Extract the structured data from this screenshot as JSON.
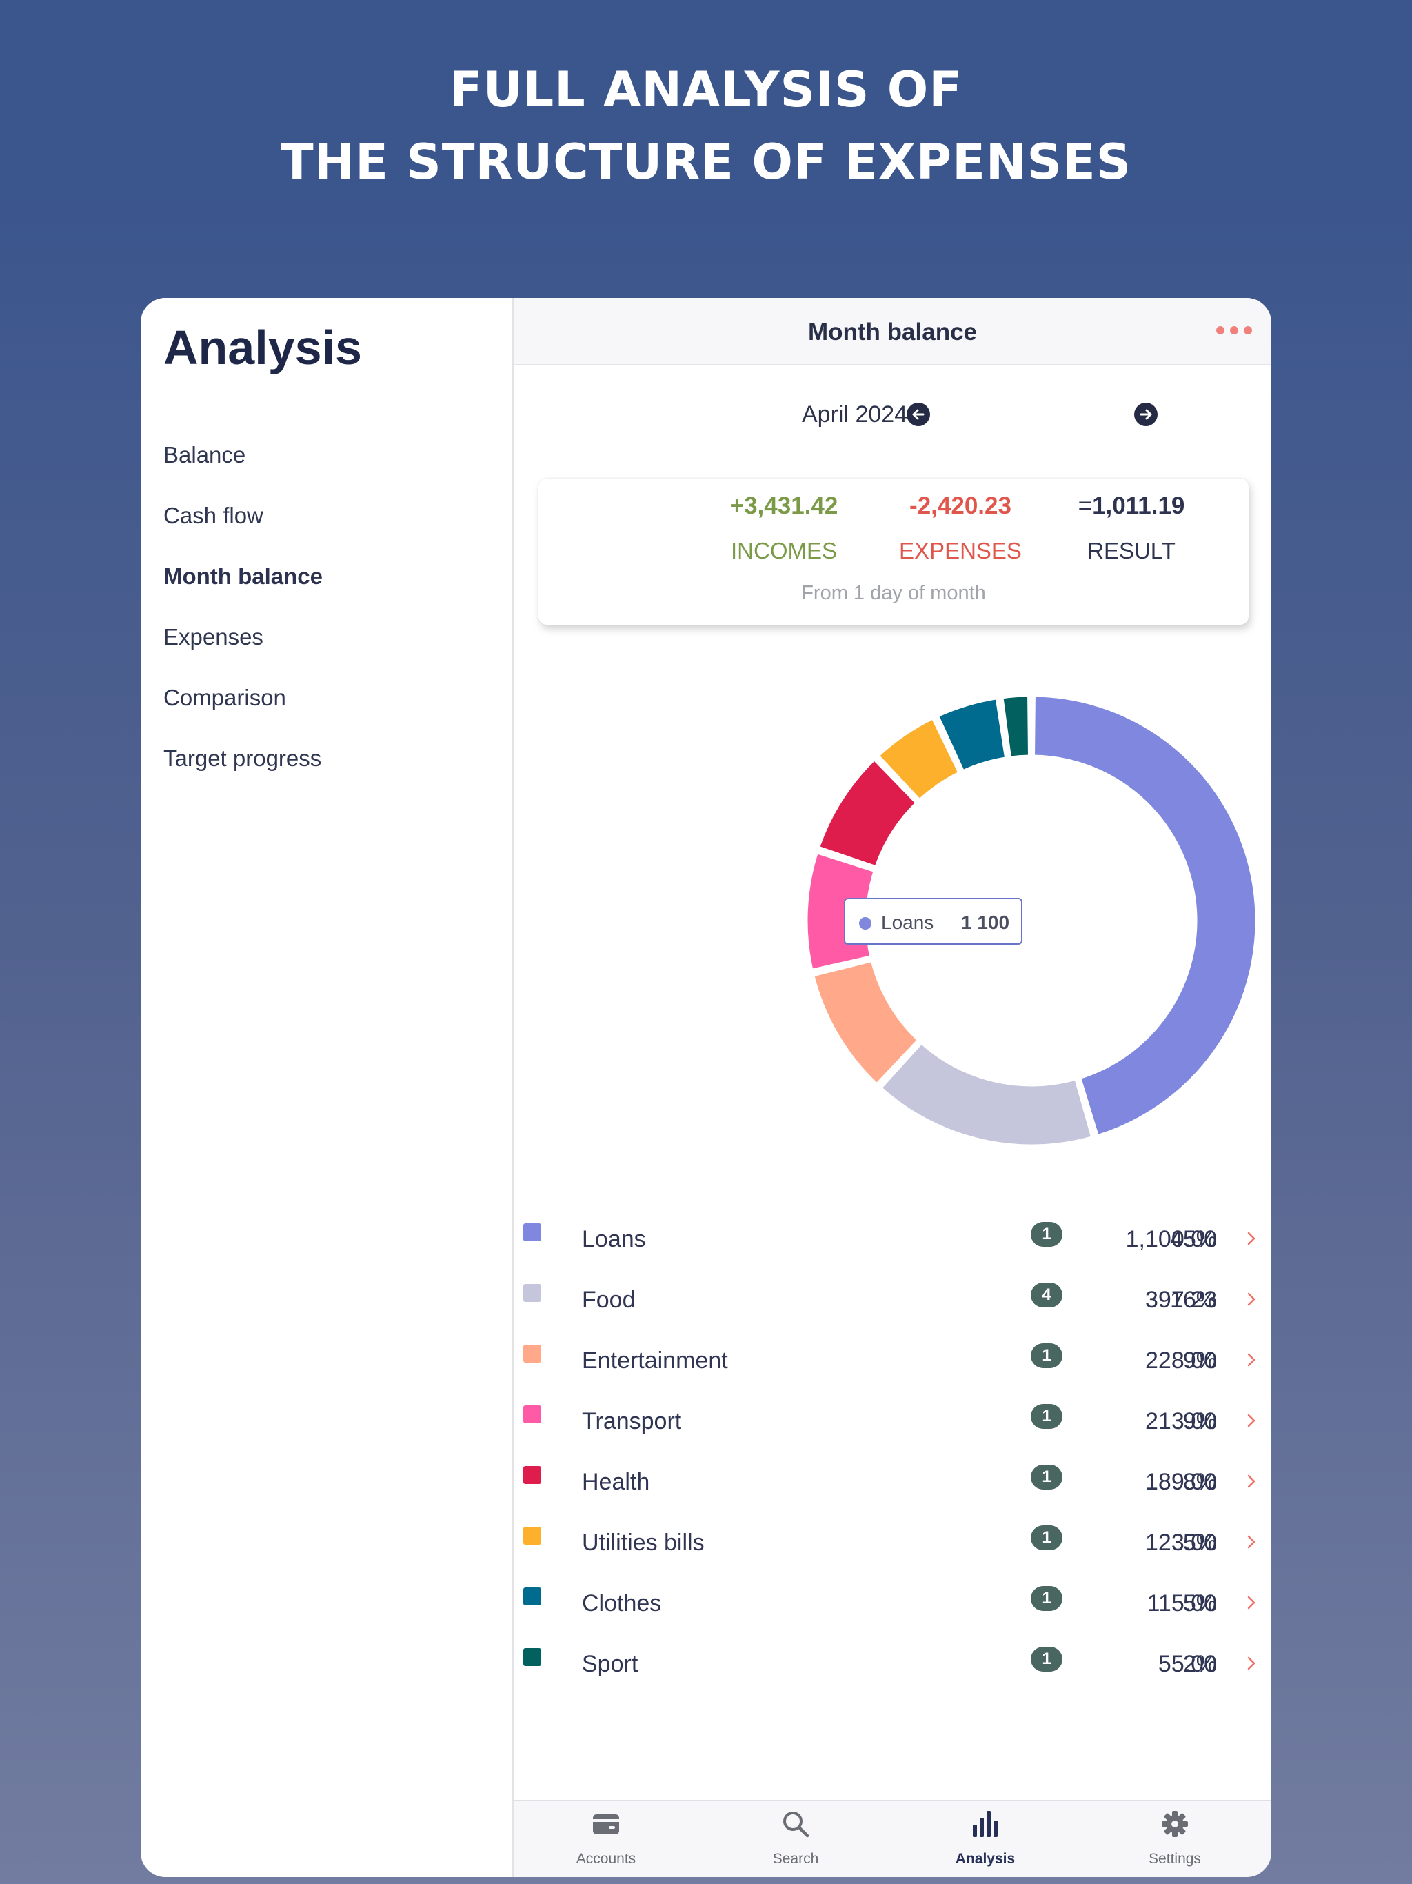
{
  "headline": {
    "line1": "FULL ANALYSIS OF",
    "line2": "THE STRUCTURE OF EXPENSES"
  },
  "sidebar": {
    "title": "Analysis",
    "items": [
      {
        "label": "Balance"
      },
      {
        "label": "Cash flow"
      },
      {
        "label": "Month balance",
        "active": true
      },
      {
        "label": "Expenses"
      },
      {
        "label": "Comparison"
      },
      {
        "label": "Target progress"
      }
    ]
  },
  "header": {
    "title": "Month balance",
    "more_icon": "more-dots-icon"
  },
  "month_nav": {
    "label": "April 2024",
    "prev_icon": "arrow-left-icon",
    "next_icon": "arrow-right-icon"
  },
  "summary": {
    "incomes_value": "+3,431.42",
    "incomes_label": "INCOMES",
    "expenses_value": "-2,420.23",
    "expenses_label": "EXPENSES",
    "result_prefix": "=",
    "result_value": "1,011.19",
    "result_label": "RESULT",
    "note": "From 1 day of month",
    "colors": {
      "incomes": "#7a9a48",
      "expenses": "#e0564c",
      "result": "#2e3450"
    }
  },
  "tooltip": {
    "name": "Loans",
    "value": "1 100"
  },
  "chart_data": {
    "type": "pie",
    "donut": true,
    "categories": [
      "Loans",
      "Food",
      "Entertainment",
      "Transport",
      "Health",
      "Utilities bills",
      "Clothes",
      "Sport"
    ],
    "values": [
      1100.0,
      397.23,
      228.0,
      213.0,
      189.0,
      123.0,
      115.0,
      55.0
    ],
    "colors": [
      "#7f88de",
      "#c5c6dc",
      "#ffa98a",
      "#ff5aa5",
      "#de1d4c",
      "#fdb02c",
      "#006a8f",
      "#02605e"
    ]
  },
  "categories": [
    {
      "name": "Loans",
      "count": "1",
      "amount": "1,100.00",
      "percent": "45%",
      "color": "#7f88de"
    },
    {
      "name": "Food",
      "count": "4",
      "amount": "397.23",
      "percent": "16%",
      "color": "#c5c6dc"
    },
    {
      "name": "Entertainment",
      "count": "1",
      "amount": "228.00",
      "percent": "9%",
      "color": "#ffa98a"
    },
    {
      "name": "Transport",
      "count": "1",
      "amount": "213.00",
      "percent": "9%",
      "color": "#ff5aa5"
    },
    {
      "name": "Health",
      "count": "1",
      "amount": "189.00",
      "percent": "8%",
      "color": "#de1d4c"
    },
    {
      "name": "Utilities bills",
      "count": "1",
      "amount": "123.00",
      "percent": "5%",
      "color": "#fdb02c"
    },
    {
      "name": "Clothes",
      "count": "1",
      "amount": "115.00",
      "percent": "5%",
      "color": "#006a8f"
    },
    {
      "name": "Sport",
      "count": "1",
      "amount": "55.00",
      "percent": "2%",
      "color": "#02605e"
    }
  ],
  "tabbar": {
    "tabs": [
      {
        "label": "Accounts",
        "icon": "wallet-icon"
      },
      {
        "label": "Search",
        "icon": "search-icon"
      },
      {
        "label": "Analysis",
        "icon": "bar-chart-icon",
        "active": true
      },
      {
        "label": "Settings",
        "icon": "gear-icon"
      }
    ]
  }
}
